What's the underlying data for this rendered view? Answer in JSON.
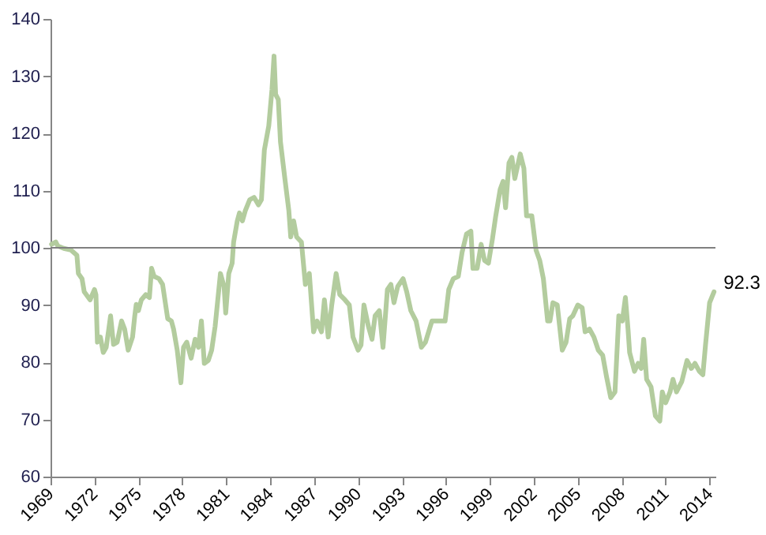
{
  "chart_data": {
    "type": "line",
    "x": [
      1969.07,
      1969.36,
      1969.5,
      1969.9,
      1970.4,
      1970.8,
      1970.9,
      1971.15,
      1971.3,
      1971.7,
      1972.0,
      1972.1,
      1972.2,
      1972.4,
      1972.6,
      1972.8,
      1972.95,
      1973.1,
      1973.3,
      1973.55,
      1973.85,
      1974.06,
      1974.3,
      1974.6,
      1974.75,
      1974.85,
      1975.0,
      1975.2,
      1975.5,
      1975.75,
      1975.9,
      1976.07,
      1976.4,
      1976.65,
      1977.0,
      1977.25,
      1977.4,
      1977.65,
      1977.9,
      1978.08,
      1978.3,
      1978.6,
      1978.87,
      1979.1,
      1979.3,
      1979.5,
      1979.77,
      1980.0,
      1980.24,
      1980.6,
      1980.85,
      1980.96,
      1981.17,
      1981.4,
      1981.5,
      1981.75,
      1981.9,
      1982.1,
      1982.3,
      1982.6,
      1982.9,
      1983.2,
      1983.4,
      1983.6,
      1983.9,
      1984.12,
      1984.26,
      1984.37,
      1984.55,
      1984.7,
      1985.0,
      1985.27,
      1985.4,
      1985.6,
      1985.8,
      1986.13,
      1986.4,
      1986.67,
      1986.96,
      1987.2,
      1987.5,
      1987.7,
      1987.96,
      1988.2,
      1988.5,
      1988.75,
      1989.1,
      1989.4,
      1989.65,
      1990.0,
      1990.2,
      1990.4,
      1990.7,
      1990.95,
      1991.16,
      1991.45,
      1991.7,
      1992.0,
      1992.24,
      1992.45,
      1992.7,
      1993.07,
      1993.32,
      1993.6,
      1993.96,
      1994.32,
      1994.6,
      1995.04,
      1995.4,
      1995.94,
      1996.19,
      1996.5,
      1996.84,
      1997.1,
      1997.4,
      1997.7,
      1997.84,
      1998.13,
      1998.4,
      1998.63,
      1998.9,
      1999.17,
      1999.4,
      1999.7,
      1999.9,
      2000.07,
      2000.3,
      2000.5,
      2000.7,
      2001.07,
      2001.32,
      2001.5,
      2001.86,
      2002.15,
      2002.4,
      2002.65,
      2002.94,
      2003.1,
      2003.3,
      2003.6,
      2003.94,
      2004.2,
      2004.45,
      2004.66,
      2005.0,
      2005.3,
      2005.5,
      2005.8,
      2006.1,
      2006.4,
      2006.7,
      2006.96,
      2007.25,
      2007.54,
      2007.8,
      2008.04,
      2008.25,
      2008.43,
      2008.54,
      2008.87,
      2009.12,
      2009.33,
      2009.5,
      2009.7,
      2010.0,
      2010.3,
      2010.6,
      2010.77,
      2011.0,
      2011.3,
      2011.5,
      2011.74,
      2012.1,
      2012.46,
      2012.75,
      2013.0,
      2013.3,
      2013.54,
      2013.72,
      2014.0,
      2014.3
    ],
    "values": [
      100.6,
      101,
      100.3,
      99.9,
      99.6,
      98.7,
      95.5,
      94.6,
      92.3,
      90.9,
      92.7,
      91.8,
      83.5,
      84.4,
      81.7,
      82.6,
      85.3,
      88.1,
      83.1,
      83.5,
      87.2,
      85.8,
      82.1,
      84.4,
      88.1,
      90.1,
      89,
      90.9,
      91.8,
      91.3,
      96.4,
      95,
      94.6,
      93.6,
      87.6,
      87.2,
      85.8,
      82.1,
      76.4,
      82.6,
      83.5,
      80.7,
      84,
      82.6,
      87.2,
      79.8,
      80.3,
      82.1,
      86.3,
      95.5,
      93.2,
      88.6,
      95.5,
      97.3,
      101,
      104.7,
      106.1,
      104.7,
      106.5,
      108.4,
      108.8,
      107.5,
      108.4,
      117.1,
      121.3,
      127.7,
      133.5,
      126.8,
      125.9,
      118.5,
      112.1,
      106.5,
      101.9,
      104.7,
      101.9,
      101,
      93.6,
      95.5,
      85.3,
      87.2,
      85.3,
      90.9,
      84.4,
      90,
      95.5,
      91.8,
      90.9,
      90,
      84.4,
      82.1,
      83,
      90,
      86.3,
      84,
      88.1,
      89,
      82.6,
      92.7,
      93.6,
      90.4,
      93.2,
      94.6,
      92.3,
      89,
      87.2,
      82.6,
      83.5,
      87.2,
      87.2,
      87.2,
      92.7,
      94.6,
      95,
      99.2,
      102.4,
      102.9,
      96.4,
      96.4,
      100.6,
      97.8,
      97.3,
      101.5,
      105.6,
      110.2,
      111.6,
      107,
      114.8,
      115.8,
      112.1,
      116.4,
      113.9,
      105.6,
      105.6,
      99.6,
      97.8,
      94.6,
      87.2,
      87.2,
      90.4,
      90,
      82.1,
      83.5,
      87.6,
      88.1,
      90,
      89.5,
      85.3,
      85.8,
      84.4,
      82.1,
      81.2,
      77.5,
      73.8,
      74.8,
      88.1,
      87.2,
      91.3,
      85.8,
      81.7,
      78.4,
      79.8,
      78.9,
      84,
      77,
      75.7,
      70.6,
      69.7,
      74.8,
      72.9,
      74.8,
      77,
      74.8,
      76.6,
      80.3,
      78.9,
      79.8,
      78.4,
      77.8,
      83,
      90.4,
      92.3
    ],
    "color": "#b3cc9e",
    "xlim": [
      1969,
      2014.4
    ],
    "xticks": [
      1969,
      1972,
      1975,
      1978,
      1981,
      1984,
      1987,
      1990,
      1993,
      1996,
      1999,
      2002,
      2005,
      2008,
      2011,
      2014
    ],
    "ylim": [
      60,
      140
    ],
    "yticks": [
      60,
      70,
      80,
      90,
      100,
      110,
      120,
      130,
      140
    ],
    "ref_lines": [
      {
        "axis": "y",
        "value": 100,
        "color": "#808080"
      }
    ],
    "annotations": [
      {
        "text": "92.3",
        "x": 2014.3,
        "y": 92.3
      }
    ],
    "grid": false
  }
}
